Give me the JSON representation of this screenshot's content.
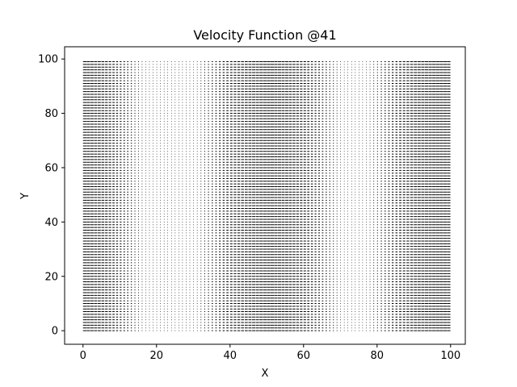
{
  "chart_data": {
    "type": "quiver",
    "title": "Velocity Function @41",
    "xlabel": "X",
    "ylabel": "Y",
    "xlim": [
      -5,
      104
    ],
    "ylim": [
      -5,
      104.5
    ],
    "xticks": [
      0,
      20,
      40,
      60,
      80,
      100
    ],
    "yticks": [
      0,
      20,
      40,
      60,
      80,
      100
    ],
    "grid": false,
    "legend": null,
    "field": {
      "x_range": [
        0,
        99
      ],
      "y_range": [
        0,
        99
      ],
      "step": 1,
      "v": 0,
      "u_profile": {
        "x": [
          0,
          5,
          10,
          15,
          20,
          25,
          30,
          35,
          40,
          45,
          50,
          55,
          60,
          65,
          70,
          75,
          80,
          85,
          90,
          95,
          99
        ],
        "u": [
          1.0,
          0.85,
          0.5,
          0.2,
          0.05,
          0.0,
          0.1,
          0.35,
          0.7,
          0.9,
          1.0,
          0.9,
          0.7,
          0.4,
          0.15,
          0.05,
          0.25,
          0.6,
          0.9,
          1.0,
          1.0
        ]
      }
    },
    "colors": {
      "arrow": "#000000",
      "axes": "#000000",
      "background": "#ffffff"
    }
  }
}
